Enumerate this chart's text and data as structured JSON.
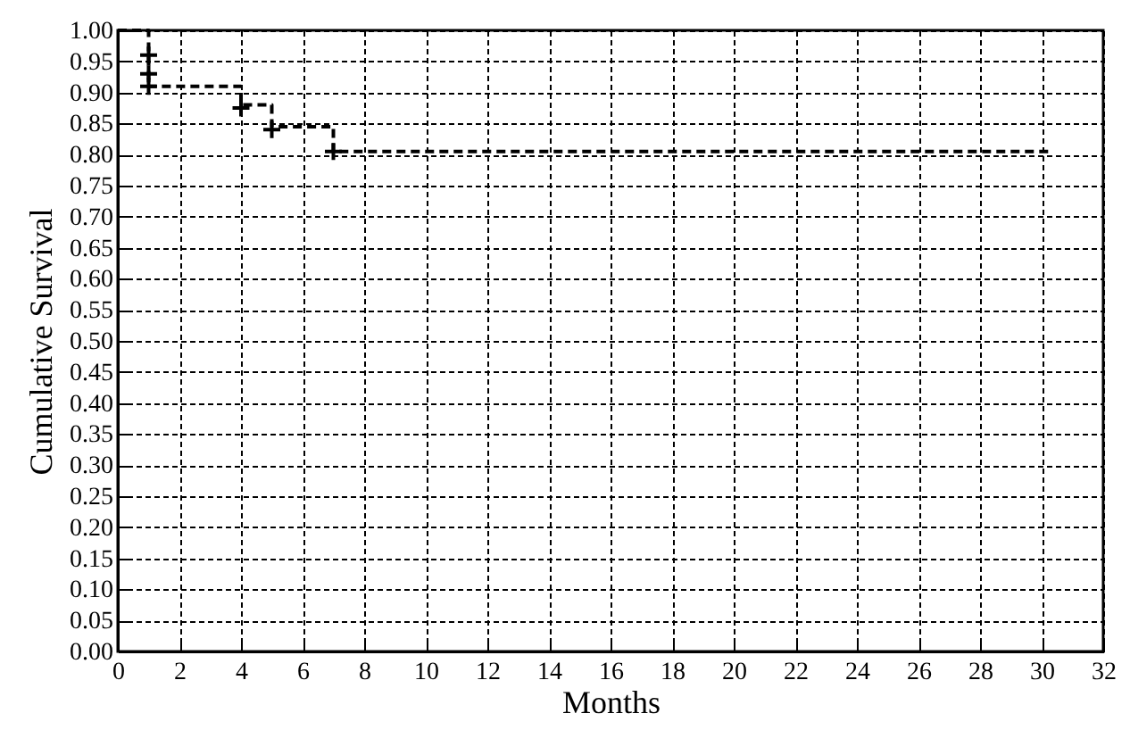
{
  "chart_data": {
    "type": "step",
    "xlabel": "Months",
    "ylabel": "Cumulative Survival",
    "xlim": [
      0,
      32
    ],
    "ylim": [
      0,
      1
    ],
    "xticks": [
      0,
      2,
      4,
      6,
      8,
      10,
      12,
      14,
      16,
      18,
      20,
      22,
      24,
      26,
      28,
      30,
      32
    ],
    "yticks": [
      {
        "value": 0,
        "label": "0.00"
      },
      {
        "value": 0.05,
        "label": "0.05"
      },
      {
        "value": 0.1,
        "label": "0.10"
      },
      {
        "value": 0.15,
        "label": "0.15"
      },
      {
        "value": 0.2,
        "label": "0.20"
      },
      {
        "value": 0.25,
        "label": "0.25"
      },
      {
        "value": 0.3,
        "label": "0.30"
      },
      {
        "value": 0.35,
        "label": "0.35"
      },
      {
        "value": 0.4,
        "label": "0.40"
      },
      {
        "value": 0.45,
        "label": "0.45"
      },
      {
        "value": 0.5,
        "label": "0.50"
      },
      {
        "value": 0.55,
        "label": "0.55"
      },
      {
        "value": 0.6,
        "label": "0.60"
      },
      {
        "value": 0.65,
        "label": "0.65"
      },
      {
        "value": 0.7,
        "label": "0.70"
      },
      {
        "value": 0.75,
        "label": "0.75"
      },
      {
        "value": 0.8,
        "label": "0.80"
      },
      {
        "value": 0.85,
        "label": "0.85"
      },
      {
        "value": 0.9,
        "label": "0.90"
      },
      {
        "value": 0.95,
        "label": "0.95"
      },
      {
        "value": 1,
        "label": "1.00"
      }
    ],
    "grid": true,
    "series": [
      {
        "type": "step",
        "color": "#000000",
        "line_style": "dashed",
        "marker": "none",
        "x": [
          0,
          1,
          4,
          5,
          7,
          30.3
        ],
        "values": [
          1,
          0.91,
          0.88,
          0.845,
          0.805,
          0.805
        ]
      },
      {
        "type": "scatter",
        "color": "#000000",
        "marker": "cross",
        "x": [
          1,
          1,
          1,
          4,
          5,
          7
        ],
        "values": [
          0.96,
          0.93,
          0.91,
          0.875,
          0.84,
          0.805
        ]
      }
    ]
  }
}
